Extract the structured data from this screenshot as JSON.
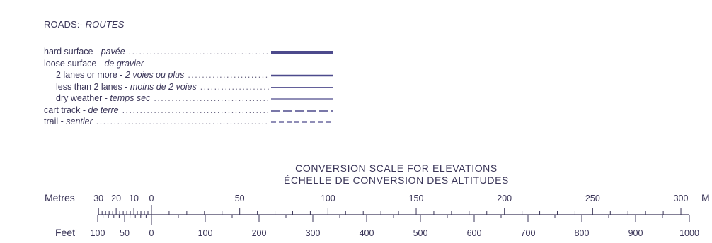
{
  "legend": {
    "title_en": "ROADS:-",
    "title_fr": "ROUTES",
    "items": [
      {
        "en": "hard surface",
        "fr": "pavée",
        "symbol": "thick-solid",
        "indent": false
      },
      {
        "en": "loose surface",
        "fr": "de gravier",
        "symbol": "none",
        "indent": false
      },
      {
        "en": "2 lanes or more",
        "fr": "2 voies ou plus",
        "symbol": "medium-solid",
        "indent": true
      },
      {
        "en": "less than 2 lanes",
        "fr": "moins de 2 voies",
        "symbol": "thin-solid",
        "indent": true
      },
      {
        "en": "dry weather",
        "fr": "temps sec",
        "symbol": "hairline-solid",
        "indent": true
      },
      {
        "en": "cart track",
        "fr": "de terre",
        "symbol": "long-dash",
        "indent": false
      },
      {
        "en": "trail",
        "fr": "sentier",
        "symbol": "short-dash",
        "indent": false
      }
    ]
  },
  "scale": {
    "title_en": "CONVERSION SCALE FOR ELEVATIONS",
    "title_fr": "ÉCHELLE DE CONVERSION DES ALTITUDES",
    "metres_label": "Metres",
    "feet_label": "Feet",
    "metres_end_label": "M",
    "metres_ticks": [
      30,
      20,
      10,
      0,
      50,
      100,
      150,
      200,
      250,
      300
    ],
    "feet_ticks": [
      100,
      50,
      0,
      100,
      200,
      300,
      400,
      500,
      600,
      700,
      800,
      900,
      1000
    ],
    "metres_range": [
      -30,
      300
    ],
    "feet_range": [
      -100,
      1000
    ]
  },
  "colors": {
    "ink": "#3a3558",
    "symbol": "#4d4a8c"
  }
}
